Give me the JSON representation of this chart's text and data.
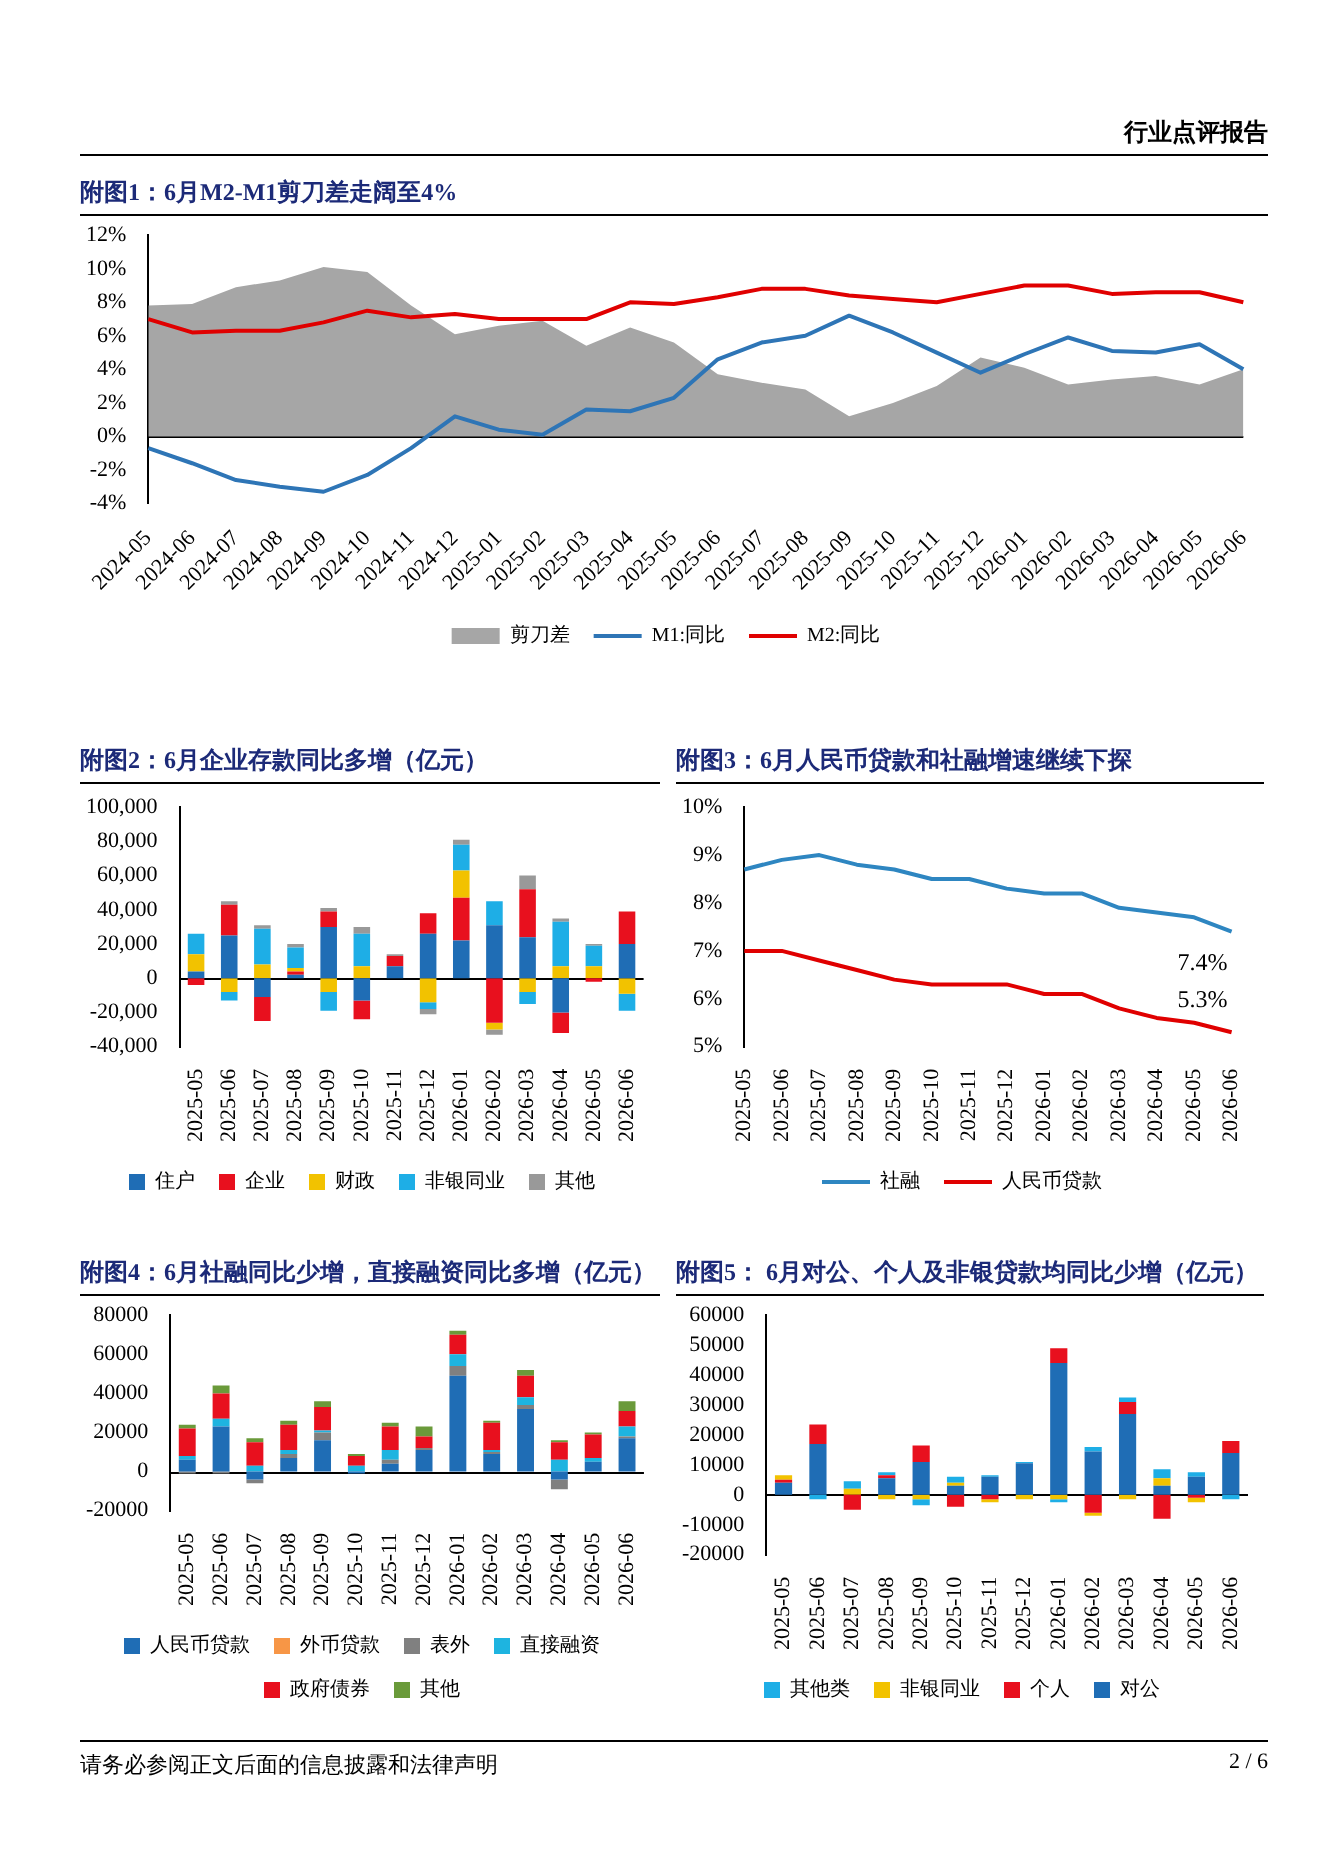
{
  "chart_data": [
    {
      "type": "line",
      "title": "附图1：6月M2-M1剪刀差走阔至4%",
      "annotations": [
        "行业点评报告"
      ],
      "categories": [
        "2024-05",
        "2024-06",
        "2024-07",
        "2024-08",
        "2024-09",
        "2024-10",
        "2024-11",
        "2024-12",
        "2025-01",
        "2025-02",
        "2025-03",
        "2025-04",
        "2025-05",
        "2025-06",
        "2025-07",
        "2025-08",
        "2025-09",
        "2025-10",
        "2025-11",
        "2025-12",
        "2026-01",
        "2026-02",
        "2026-03",
        "2026-04",
        "2026-05",
        "2026-06"
      ],
      "series": [
        {
          "name": "剪刀差",
          "type": "area",
          "color": "#a6a6a6",
          "values": [
            7.8,
            7.9,
            8.9,
            9.3,
            10.1,
            9.8,
            7.8,
            6.1,
            6.6,
            6.9,
            5.4,
            6.5,
            5.6,
            3.7,
            3.2,
            2.8,
            1.2,
            2.0,
            3.0,
            4.7,
            4.1,
            3.1,
            3.4,
            3.6,
            3.1,
            4.0
          ]
        },
        {
          "name": "M1:同比",
          "color": "#2e75b6",
          "values": [
            -0.7,
            -1.6,
            -2.6,
            -3.0,
            -3.3,
            -2.3,
            -0.7,
            1.2,
            0.4,
            0.1,
            1.6,
            1.5,
            2.3,
            4.6,
            5.6,
            6.0,
            7.2,
            6.2,
            5.0,
            3.8,
            4.9,
            5.9,
            5.1,
            5.0,
            5.5,
            4.0
          ]
        },
        {
          "name": "M2:同比",
          "color": "#e00000",
          "values": [
            7.0,
            6.2,
            6.3,
            6.3,
            6.8,
            7.5,
            7.1,
            7.3,
            7.0,
            7.0,
            7.0,
            8.0,
            7.9,
            8.3,
            8.8,
            8.8,
            8.4,
            8.2,
            8.0,
            8.5,
            9.0,
            9.0,
            8.5,
            8.6,
            8.6,
            8.0
          ]
        }
      ],
      "ylim": [
        -4,
        12
      ],
      "yticks": [
        {
          "value": -4,
          "label": "-4%"
        },
        {
          "value": -2,
          "label": "-2%"
        },
        {
          "value": 0,
          "label": "0%"
        },
        {
          "value": 2,
          "label": "2%"
        },
        {
          "value": 4,
          "label": "4%"
        },
        {
          "value": 6,
          "label": "6%"
        },
        {
          "value": 8,
          "label": "8%"
        },
        {
          "value": 10,
          "label": "10%"
        },
        {
          "value": 12,
          "label": "12%"
        }
      ],
      "marker": "none",
      "grid": false,
      "legend": "bottom",
      "ref_lines": [
        {
          "axis": "y",
          "value": 0,
          "color": "#000000"
        }
      ]
    },
    {
      "type": "bar",
      "title": "附图2：6月企业存款同比多增（亿元）",
      "stacked": true,
      "categories": [
        "2025-05",
        "2025-06",
        "2025-07",
        "2025-08",
        "2025-09",
        "2025-10",
        "2025-11",
        "2025-12",
        "2026-01",
        "2026-02",
        "2026-03",
        "2026-04",
        "2026-05",
        "2026-06"
      ],
      "series": [
        {
          "name": "住户",
          "color": "#1f6db5",
          "values": [
            4000,
            25000,
            -11000,
            2000,
            30000,
            -13000,
            7000,
            26000,
            22000,
            31000,
            24000,
            -20000,
            0,
            20000
          ]
        },
        {
          "name": "企业",
          "color": "#e8101e",
          "values": [
            -4000,
            18000,
            -14000,
            2000,
            9000,
            -11000,
            6000,
            12000,
            25000,
            -26000,
            28000,
            -12000,
            -2000,
            19000
          ]
        },
        {
          "name": "财政",
          "color": "#f2c200",
          "values": [
            10000,
            -8000,
            8000,
            2000,
            -8000,
            7000,
            0,
            -14000,
            16000,
            -4000,
            -8000,
            7000,
            7000,
            -9000
          ]
        },
        {
          "name": "非银同业",
          "color": "#1eaee6",
          "values": [
            12000,
            -5000,
            21000,
            12000,
            -11000,
            19000,
            0,
            -4000,
            15000,
            14000,
            -7000,
            26000,
            12000,
            -10000
          ]
        },
        {
          "name": "其他",
          "color": "#999999",
          "values": [
            0,
            2000,
            2000,
            2000,
            2000,
            4000,
            1000,
            -3000,
            3000,
            -3000,
            8000,
            2000,
            1000,
            0
          ]
        }
      ],
      "ylim": [
        -40000,
        100000
      ],
      "yticks": [
        {
          "value": -40000,
          "label": "-40,000"
        },
        {
          "value": -20000,
          "label": "-20,000"
        },
        0,
        {
          "value": 20000,
          "label": "20,000"
        },
        {
          "value": 40000,
          "label": "40,000"
        },
        {
          "value": 60000,
          "label": "60,000"
        },
        {
          "value": 80000,
          "label": "80,000"
        },
        {
          "value": 100000,
          "label": "100,000"
        }
      ],
      "grid": false,
      "ref_lines": [
        {
          "axis": "y",
          "value": 0,
          "color": "#000000"
        }
      ],
      "legend": "bottom"
    },
    {
      "type": "line",
      "title": "附图3：6月人民币贷款和社融增速继续下探",
      "categories": [
        "2025-05",
        "2025-06",
        "2025-07",
        "2025-08",
        "2025-09",
        "2025-10",
        "2025-11",
        "2025-12",
        "2026-01",
        "2026-02",
        "2026-03",
        "2026-04",
        "2026-05",
        "2026-06"
      ],
      "series": [
        {
          "name": "社融",
          "color": "#2e86c1",
          "values": [
            8.7,
            8.9,
            9.0,
            8.8,
            8.7,
            8.5,
            8.5,
            8.3,
            8.2,
            8.2,
            7.9,
            7.8,
            7.7,
            7.4
          ],
          "value_labels": [
            null,
            null,
            null,
            null,
            null,
            null,
            null,
            null,
            null,
            null,
            null,
            null,
            null,
            "7.4%"
          ]
        },
        {
          "name": "人民币贷款",
          "color": "#e00000",
          "values": [
            7.0,
            7.0,
            6.8,
            6.6,
            6.4,
            6.3,
            6.3,
            6.3,
            6.1,
            6.1,
            5.8,
            5.6,
            5.5,
            5.3
          ],
          "value_labels": [
            null,
            null,
            null,
            null,
            null,
            null,
            null,
            null,
            null,
            null,
            null,
            null,
            null,
            "5.3%"
          ]
        }
      ],
      "ylim": [
        5,
        10
      ],
      "yticks": [
        {
          "value": 5,
          "label": "5%"
        },
        {
          "value": 6,
          "label": "6%"
        },
        {
          "value": 7,
          "label": "7%"
        },
        {
          "value": 8,
          "label": "8%"
        },
        {
          "value": 9,
          "label": "9%"
        },
        {
          "value": 10,
          "label": "10%"
        }
      ],
      "marker": "none",
      "grid": false,
      "legend": "bottom"
    },
    {
      "type": "bar",
      "title": "附图4：6月社融同比少增，直接融资同比多增（亿元）",
      "stacked": true,
      "categories": [
        "2025-05",
        "2025-06",
        "2025-07",
        "2025-08",
        "2025-09",
        "2025-10",
        "2025-11",
        "2025-12",
        "2026-01",
        "2026-02",
        "2026-03",
        "2026-04",
        "2026-05",
        "2026-06"
      ],
      "series": [
        {
          "name": "人民币贷款",
          "color": "#1f6db5",
          "values": [
            6000,
            23000,
            -4000,
            7000,
            16000,
            -1000,
            4000,
            11000,
            49000,
            9000,
            32000,
            -4000,
            5000,
            17000
          ]
        },
        {
          "name": "外币贷款",
          "color": "#f79646",
          "values": [
            0,
            0,
            0,
            0,
            0,
            0,
            0,
            0,
            0,
            0,
            0,
            0,
            0,
            0
          ]
        },
        {
          "name": "表外",
          "color": "#808080",
          "values": [
            -1000,
            -1000,
            -2000,
            2000,
            4000,
            0,
            2000,
            1000,
            5000,
            1000,
            2000,
            -5000,
            0,
            1000
          ]
        },
        {
          "name": "直接融资",
          "color": "#1eb4e0",
          "values": [
            2000,
            4000,
            3000,
            2000,
            1000,
            3000,
            5000,
            0,
            6000,
            1000,
            4000,
            6000,
            2000,
            5000
          ]
        },
        {
          "name": "政府债券",
          "color": "#e8101e",
          "values": [
            14000,
            13000,
            12000,
            13000,
            12000,
            5000,
            12000,
            6000,
            10000,
            14000,
            11000,
            9000,
            12000,
            8000
          ]
        },
        {
          "name": "其他",
          "color": "#6a9a3a",
          "values": [
            2000,
            4000,
            2000,
            2000,
            3000,
            1000,
            2000,
            5000,
            2000,
            1000,
            3000,
            1000,
            1000,
            5000
          ]
        }
      ],
      "ylim": [
        -20000,
        80000
      ],
      "yticks": [
        -20000,
        0,
        20000,
        40000,
        60000,
        80000
      ],
      "grid": false,
      "ref_lines": [
        {
          "axis": "y",
          "value": 0,
          "color": "#000000"
        }
      ],
      "legend": "bottom"
    },
    {
      "type": "bar",
      "title": "附图5： 6月对公、个人及非银贷款均同比少增（亿元）",
      "stacked": true,
      "annotations": [
        "请务必参阅正文后面的信息披露和法律声明",
        "2 / 6"
      ],
      "categories": [
        "2025-05",
        "2025-06",
        "2025-07",
        "2025-08",
        "2025-09",
        "2025-10",
        "2025-11",
        "2025-12",
        "2026-01",
        "2026-02",
        "2026-03",
        "2026-04",
        "2026-05",
        "2026-06"
      ],
      "series": [
        {
          "name": "对公",
          "color": "#1f6db5",
          "values": [
            4000,
            17000,
            0,
            5500,
            11000,
            3000,
            6000,
            10500,
            44000,
            14500,
            27000,
            3000,
            6000,
            14000
          ]
        },
        {
          "name": "个人",
          "color": "#e8101e",
          "values": [
            1000,
            6500,
            -5000,
            1000,
            5500,
            -4000,
            -1500,
            0,
            5000,
            -6000,
            4000,
            -8000,
            -1000,
            4000
          ]
        },
        {
          "name": "非银同业",
          "color": "#f2c200",
          "values": [
            1500,
            0,
            2000,
            -1500,
            -1500,
            1000,
            -1000,
            -1500,
            -1500,
            -1000,
            -1500,
            2500,
            -1500,
            0
          ]
        },
        {
          "name": "其他类",
          "color": "#1eaee6",
          "values": [
            0,
            -1500,
            2500,
            1000,
            -2000,
            2000,
            500,
            500,
            -1000,
            1500,
            1500,
            3000,
            1500,
            -1500
          ]
        }
      ],
      "ylim": [
        -20000,
        60000
      ],
      "yticks": [
        -20000,
        -10000,
        0,
        10000,
        20000,
        30000,
        40000,
        50000,
        60000
      ],
      "grid": false,
      "ref_lines": [
        {
          "axis": "y",
          "value": 0,
          "color": "#000000"
        }
      ],
      "legend": "bottom"
    }
  ]
}
